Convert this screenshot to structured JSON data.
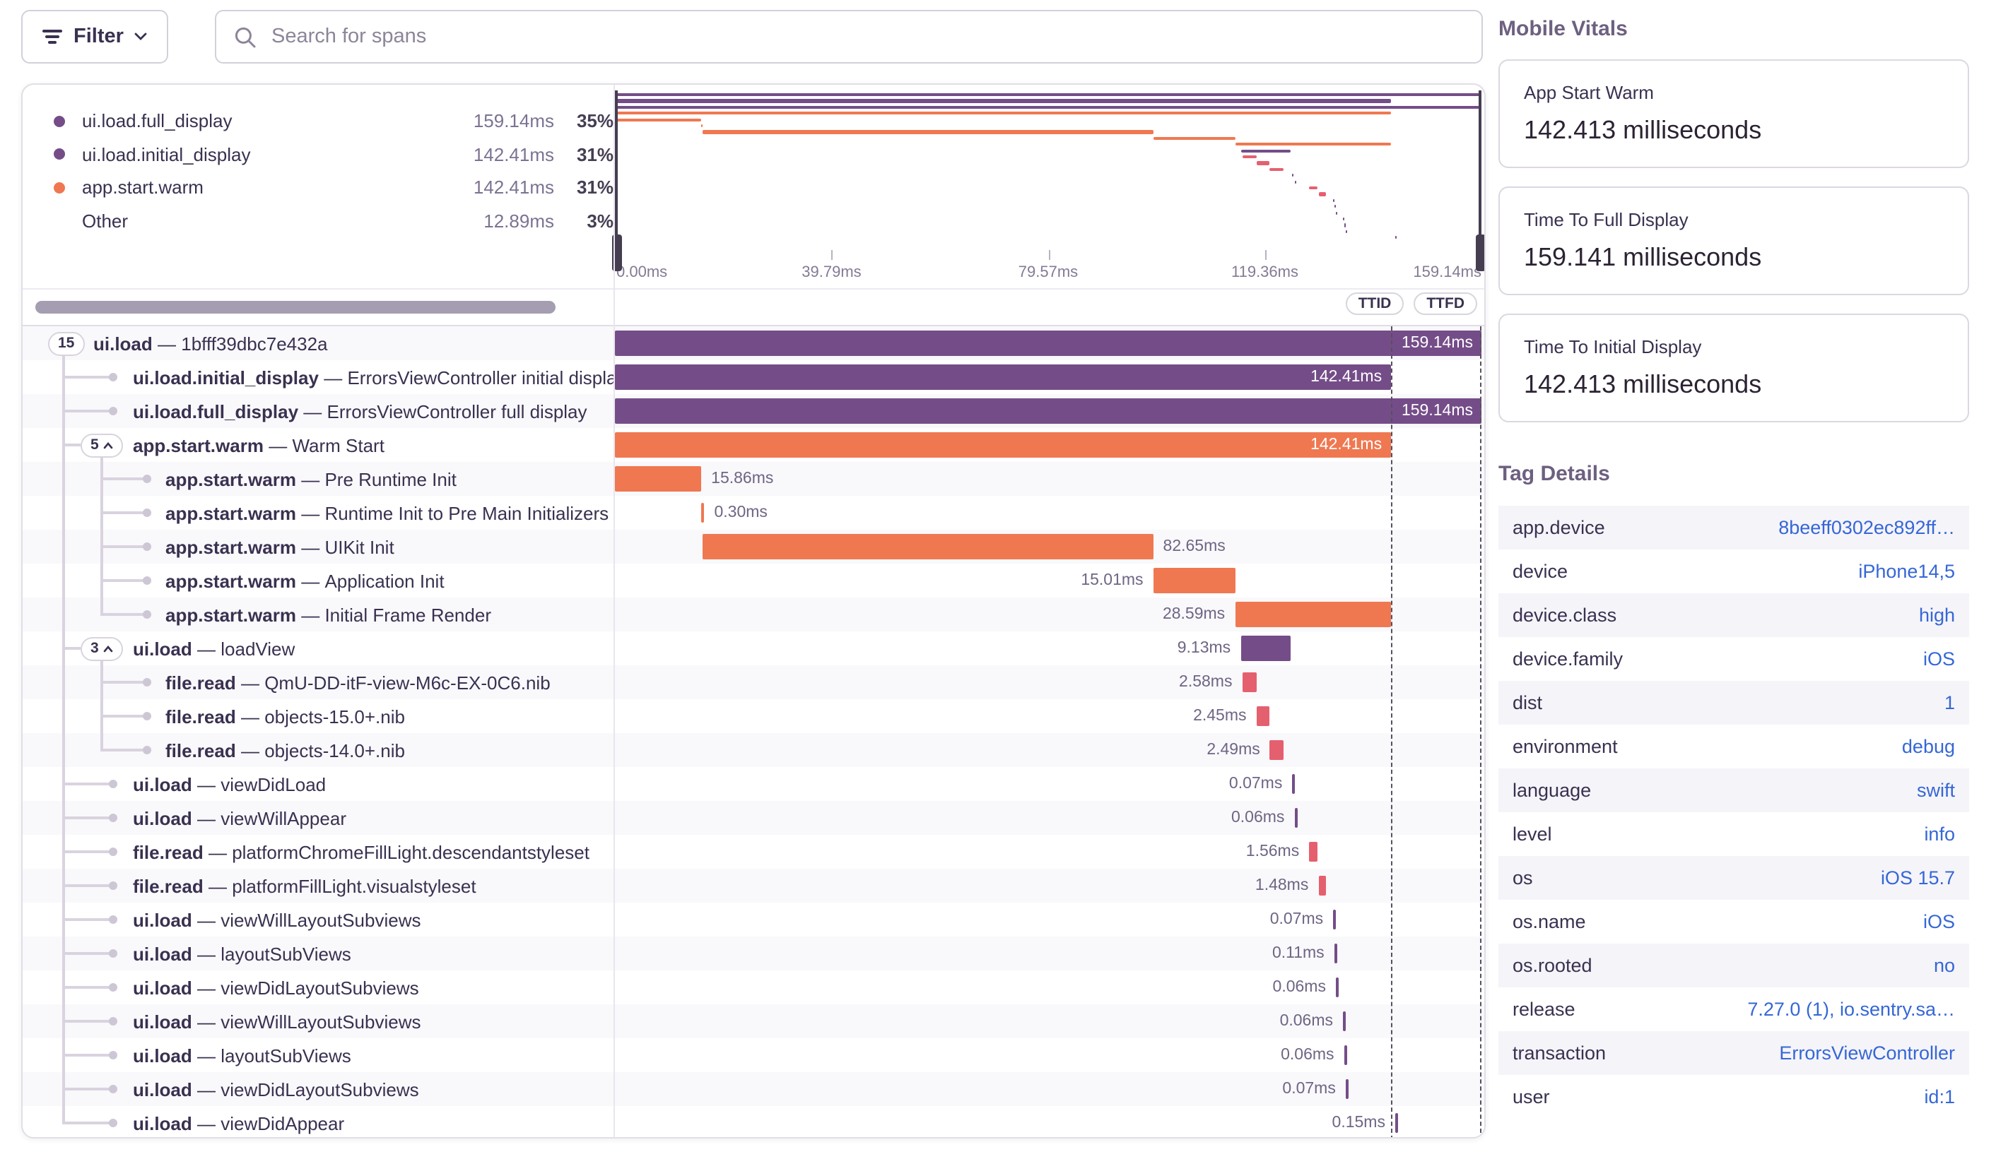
{
  "toolbar": {
    "filter_label": "Filter",
    "search_placeholder": "Search for spans"
  },
  "legend": {
    "items": [
      {
        "name": "ui.load.full_display",
        "duration": "159.14ms",
        "pct": "35%",
        "color": "purple"
      },
      {
        "name": "ui.load.initial_display",
        "duration": "142.41ms",
        "pct": "31%",
        "color": "purple"
      },
      {
        "name": "app.start.warm",
        "duration": "142.41ms",
        "pct": "31%",
        "color": "orange"
      },
      {
        "name": "Other",
        "duration": "12.89ms",
        "pct": "3%",
        "color": "none"
      }
    ]
  },
  "minimap": {
    "axis_ticks": [
      "0.00ms",
      "39.79ms",
      "79.57ms",
      "119.36ms",
      "159.14ms"
    ]
  },
  "markers": {
    "ttid": "TTID",
    "ttfd": "TTFD"
  },
  "trace": {
    "separator": "—",
    "total_ms": 159.14,
    "ttid_ms": 142.41,
    "ttfd_ms": 159.14,
    "spans": [
      {
        "op": "ui.load",
        "desc": "1bfff39dbc7e432a",
        "depth": 0,
        "pill": "15",
        "expanded": false,
        "start": 0,
        "dur": 159.14,
        "label": "159.14ms",
        "color": "purple",
        "label_pos": "inside"
      },
      {
        "op": "ui.load.initial_display",
        "desc": "ErrorsViewController initial display",
        "depth": 1,
        "start": 0,
        "dur": 142.41,
        "label": "142.41ms",
        "color": "purple",
        "label_pos": "inside"
      },
      {
        "op": "ui.load.full_display",
        "desc": "ErrorsViewController full display",
        "depth": 1,
        "start": 0,
        "dur": 159.14,
        "label": "159.14ms",
        "color": "purple",
        "label_pos": "inside"
      },
      {
        "op": "app.start.warm",
        "desc": "Warm Start",
        "depth": 1,
        "pill": "5",
        "expanded": true,
        "start": 0,
        "dur": 142.41,
        "label": "142.41ms",
        "color": "orange",
        "label_pos": "inside"
      },
      {
        "op": "app.start.warm",
        "desc": "Pre Runtime Init",
        "depth": 2,
        "start": 0,
        "dur": 15.86,
        "label": "15.86ms",
        "color": "orange",
        "label_pos": "after"
      },
      {
        "op": "app.start.warm",
        "desc": "Runtime Init to Pre Main Initializers",
        "depth": 2,
        "start": 15.9,
        "dur": 0.3,
        "label": "0.30ms",
        "color": "orange",
        "label_pos": "after"
      },
      {
        "op": "app.start.warm",
        "desc": "UIKit Init",
        "depth": 2,
        "start": 16.2,
        "dur": 82.65,
        "label": "82.65ms",
        "color": "orange",
        "label_pos": "after"
      },
      {
        "op": "app.start.warm",
        "desc": "Application Init",
        "depth": 2,
        "start": 98.85,
        "dur": 15.01,
        "label": "15.01ms",
        "color": "orange",
        "label_pos": "before"
      },
      {
        "op": "app.start.warm",
        "desc": "Initial Frame Render",
        "depth": 2,
        "start": 113.86,
        "dur": 28.59,
        "label": "28.59ms",
        "color": "orange",
        "label_pos": "before"
      },
      {
        "op": "ui.load",
        "desc": "loadView",
        "depth": 1,
        "pill": "3",
        "expanded": true,
        "start": 114.9,
        "dur": 9.13,
        "label": "9.13ms",
        "color": "purple",
        "label_pos": "before"
      },
      {
        "op": "file.read",
        "desc": "QmU-DD-itF-view-M6c-EX-0C6.nib",
        "depth": 2,
        "start": 115.2,
        "dur": 2.58,
        "label": "2.58ms",
        "color": "pink",
        "label_pos": "before"
      },
      {
        "op": "file.read",
        "desc": "objects-15.0+.nib",
        "depth": 2,
        "start": 117.8,
        "dur": 2.45,
        "label": "2.45ms",
        "color": "pink",
        "label_pos": "before"
      },
      {
        "op": "file.read",
        "desc": "objects-14.0+.nib",
        "depth": 2,
        "start": 120.3,
        "dur": 2.49,
        "label": "2.49ms",
        "color": "pink",
        "label_pos": "before"
      },
      {
        "op": "ui.load",
        "desc": "viewDidLoad",
        "depth": 1,
        "start": 124.4,
        "dur": 0.07,
        "label": "0.07ms",
        "color": "purple",
        "label_pos": "before"
      },
      {
        "op": "ui.load",
        "desc": "viewWillAppear",
        "depth": 1,
        "start": 124.8,
        "dur": 0.06,
        "label": "0.06ms",
        "color": "purple",
        "label_pos": "before"
      },
      {
        "op": "file.read",
        "desc": "platformChromeFillLight.descendantstyleset",
        "depth": 1,
        "start": 127.5,
        "dur": 1.56,
        "label": "1.56ms",
        "color": "pink",
        "label_pos": "before"
      },
      {
        "op": "file.read",
        "desc": "platformFillLight.visualstyleset",
        "depth": 1,
        "start": 129.2,
        "dur": 1.48,
        "label": "1.48ms",
        "color": "pink",
        "label_pos": "before"
      },
      {
        "op": "ui.load",
        "desc": "viewWillLayoutSubviews",
        "depth": 1,
        "start": 131.9,
        "dur": 0.07,
        "label": "0.07ms",
        "color": "purple",
        "label_pos": "before"
      },
      {
        "op": "ui.load",
        "desc": "layoutSubViews",
        "depth": 1,
        "start": 132.1,
        "dur": 0.11,
        "label": "0.11ms",
        "color": "purple",
        "label_pos": "before"
      },
      {
        "op": "ui.load",
        "desc": "viewDidLayoutSubviews",
        "depth": 1,
        "start": 132.4,
        "dur": 0.06,
        "label": "0.06ms",
        "color": "purple",
        "label_pos": "before"
      },
      {
        "op": "ui.load",
        "desc": "viewWillLayoutSubviews",
        "depth": 1,
        "start": 133.7,
        "dur": 0.06,
        "label": "0.06ms",
        "color": "purple",
        "label_pos": "before"
      },
      {
        "op": "ui.load",
        "desc": "layoutSubViews",
        "depth": 1,
        "start": 133.9,
        "dur": 0.06,
        "label": "0.06ms",
        "color": "purple",
        "label_pos": "before"
      },
      {
        "op": "ui.load",
        "desc": "viewDidLayoutSubviews",
        "depth": 1,
        "start": 134.2,
        "dur": 0.07,
        "label": "0.07ms",
        "color": "purple",
        "label_pos": "before"
      },
      {
        "op": "ui.load",
        "desc": "viewDidAppear",
        "depth": 1,
        "start": 143.3,
        "dur": 0.15,
        "label": "0.15ms",
        "color": "purple",
        "label_pos": "before"
      }
    ],
    "vlines": [
      {
        "x": 28,
        "from": 0,
        "to": 23
      },
      {
        "x": 55,
        "from": 3,
        "to": 8
      },
      {
        "x": 55,
        "from": 9,
        "to": 12
      }
    ]
  },
  "vitals": {
    "title": "Mobile Vitals",
    "cards": [
      {
        "label": "App Start Warm",
        "value": "142.413 milliseconds"
      },
      {
        "label": "Time To Full Display",
        "value": "159.141 milliseconds"
      },
      {
        "label": "Time To Initial Display",
        "value": "142.413 milliseconds"
      }
    ]
  },
  "tags": {
    "title": "Tag Details",
    "rows": [
      {
        "key": "app.device",
        "value": "8beeff0302ec892ff…"
      },
      {
        "key": "device",
        "value": "iPhone14,5"
      },
      {
        "key": "device.class",
        "value": "high"
      },
      {
        "key": "device.family",
        "value": "iOS"
      },
      {
        "key": "dist",
        "value": "1"
      },
      {
        "key": "environment",
        "value": "debug"
      },
      {
        "key": "language",
        "value": "swift"
      },
      {
        "key": "level",
        "value": "info"
      },
      {
        "key": "os",
        "value": "iOS 15.7"
      },
      {
        "key": "os.name",
        "value": "iOS"
      },
      {
        "key": "os.rooted",
        "value": "no"
      },
      {
        "key": "release",
        "value": "7.27.0 (1), io.sentry.sa…"
      },
      {
        "key": "transaction",
        "value": "ErrorsViewController"
      },
      {
        "key": "user",
        "value": "id:1"
      }
    ]
  },
  "colors": {
    "purple": "#744d88",
    "orange": "#ef7851",
    "pink": "#e5606f",
    "text": "#3a3150",
    "muted": "#6f6584",
    "link_blue": "#3567d6"
  }
}
